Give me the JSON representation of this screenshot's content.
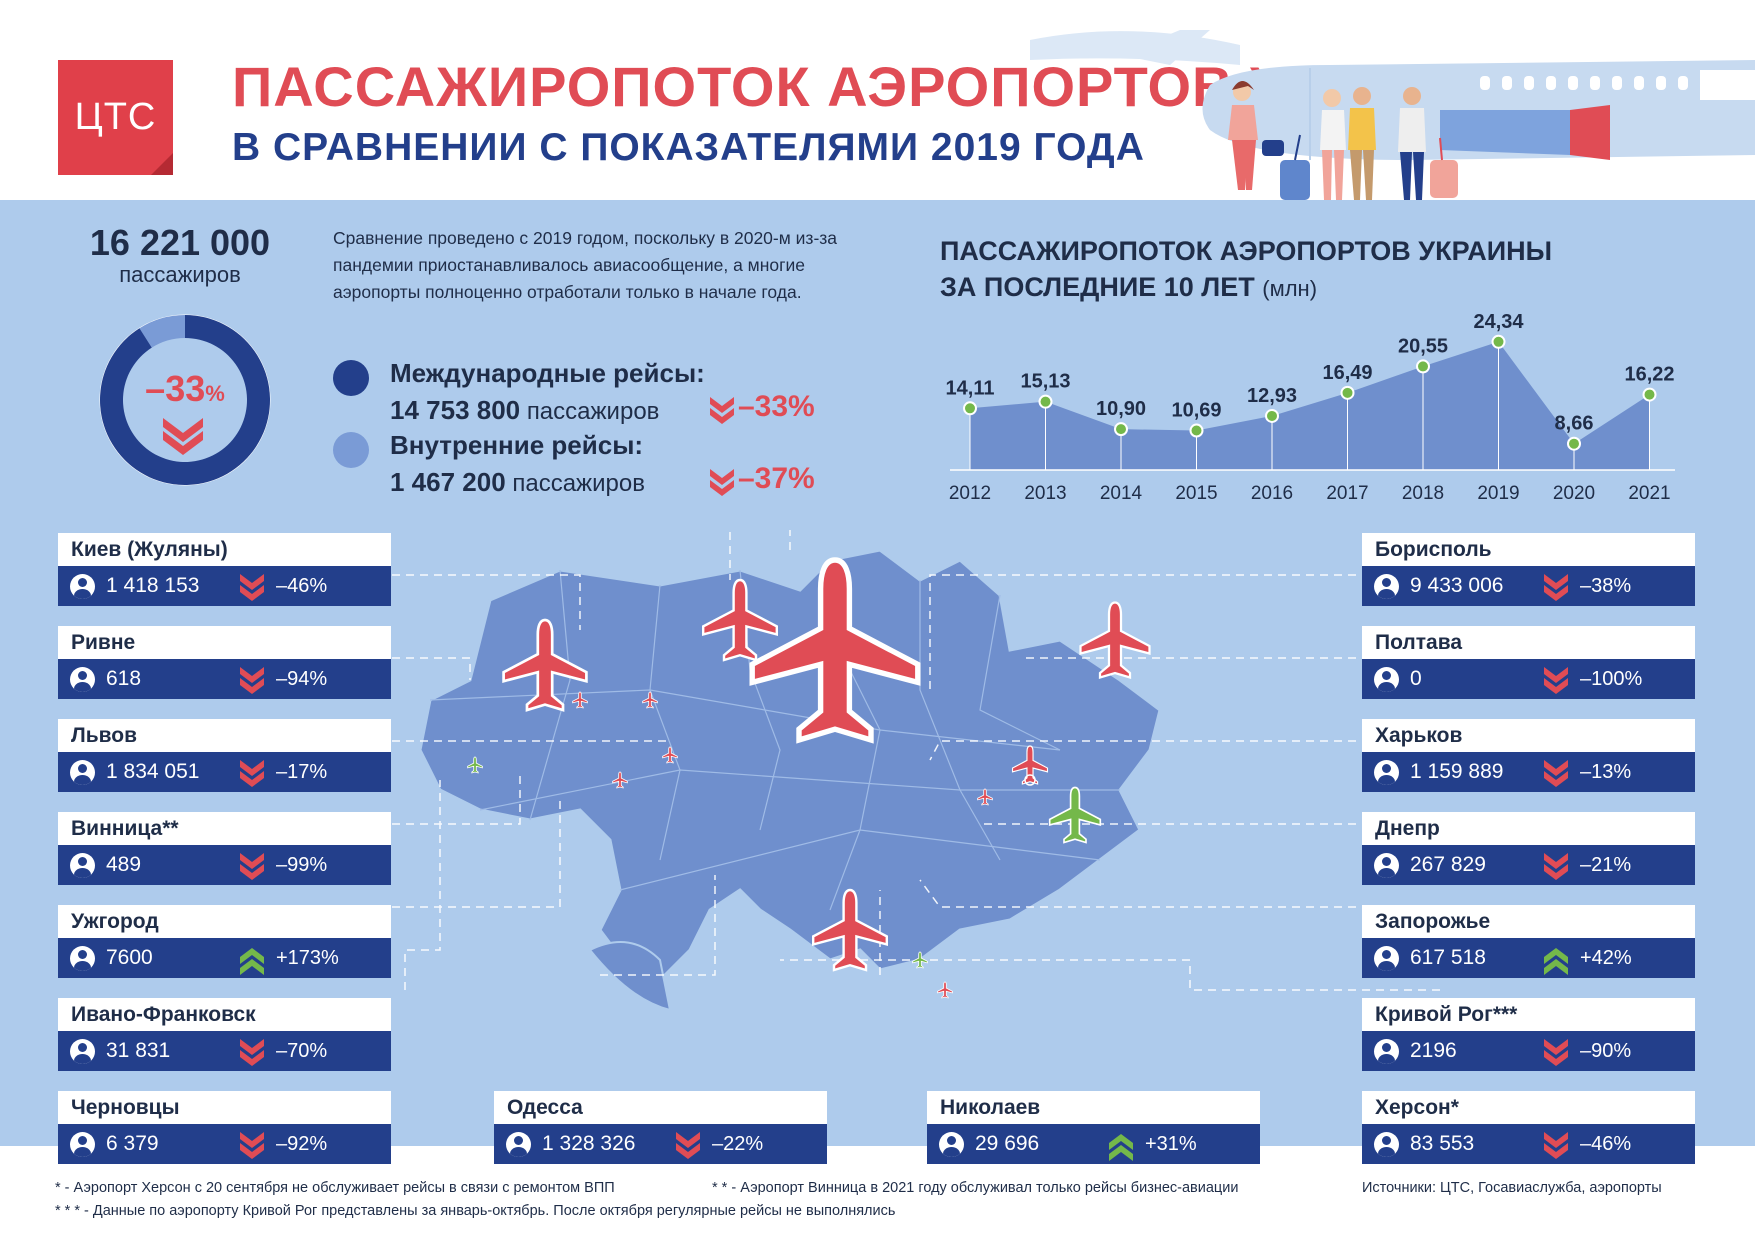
{
  "header": {
    "logo": "ЦТС",
    "title": "ПАССАЖИРОПОТОК АЭРОПОРТОВ УКРАИНЫ 2021",
    "subtitle": "В СРАВНЕНИИ С ПОКАЗАТЕЛЯМИ 2019 ГОДА"
  },
  "total": {
    "value": "16 221 000",
    "unit": "пассажиров",
    "change": "–33",
    "change_suffix": "%",
    "international_share": 0.91
  },
  "note": "Сравнение проведено с 2019 годом, поскольку в 2020-м из-за пандемии приостанавливалось авиасообщение, а многие аэропорты полноценно отработали только в начале года.",
  "legend": {
    "international": {
      "title": "Международные рейсы:",
      "value": "14 753 800",
      "unit": "пассажиров",
      "change": "–33%",
      "color": "#233f8b"
    },
    "domestic": {
      "title": "Внутренние рейсы:",
      "value": "1 467 200",
      "unit": "пассажиров",
      "change": "–37%",
      "color": "#7a9bd6"
    }
  },
  "chart_title": {
    "line1": "ПАССАЖИРОПОТОК АЭРОПОРТОВ УКРАИНЫ",
    "line2": "ЗА ПОСЛЕДНИЕ 10 ЛЕТ",
    "unit": "(млн)"
  },
  "chart_data": {
    "type": "area",
    "title": "ПАССАЖИРОПОТОК АЭРОПОРТОВ УКРАИНЫ ЗА ПОСЛЕДНИЕ 10 ЛЕТ (млн)",
    "categories": [
      "2012",
      "2013",
      "2014",
      "2015",
      "2016",
      "2017",
      "2018",
      "2019",
      "2020",
      "2021"
    ],
    "values": [
      14.11,
      15.13,
      10.9,
      10.69,
      12.93,
      16.49,
      20.55,
      24.34,
      8.66,
      16.22
    ],
    "labels": [
      "14,11",
      "15,13",
      "10,90",
      "10,69",
      "12,93",
      "16,49",
      "20,55",
      "24,34",
      "8,66",
      "16,22"
    ]
  },
  "cities_left": [
    {
      "name": "Киев (Жуляны)",
      "count": "1 418 153",
      "change": "–46%",
      "trend": "down"
    },
    {
      "name": "Ривне",
      "count": "618",
      "change": "–94%",
      "trend": "down"
    },
    {
      "name": "Львов",
      "count": "1 834 051",
      "change": "–17%",
      "trend": "down"
    },
    {
      "name": "Винница**",
      "count": "489",
      "change": "–99%",
      "trend": "down"
    },
    {
      "name": "Ужгород",
      "count": "7600",
      "change": "+173%",
      "trend": "up"
    },
    {
      "name": "Ивано-Франковск",
      "count": "31 831",
      "change": "–70%",
      "trend": "down"
    },
    {
      "name": "Черновцы",
      "count": "6 379",
      "change": "–92%",
      "trend": "down"
    }
  ],
  "cities_right": [
    {
      "name": "Борисполь",
      "count": "9 433 006",
      "change": "–38%",
      "trend": "down"
    },
    {
      "name": "Полтава",
      "count": "0",
      "change": "–100%",
      "trend": "down"
    },
    {
      "name": "Харьков",
      "count": "1 159 889",
      "change": "–13%",
      "trend": "down"
    },
    {
      "name": "Днепр",
      "count": "267 829",
      "change": "–21%",
      "trend": "down"
    },
    {
      "name": "Запорожье",
      "count": "617 518",
      "change": "+42%",
      "trend": "up"
    },
    {
      "name": "Кривой Рог***",
      "count": "2196",
      "change": "–90%",
      "trend": "down"
    },
    {
      "name": "Херсон*",
      "count": "83 553",
      "change": "–46%",
      "trend": "down"
    }
  ],
  "cities_bottom": [
    {
      "name": "Одесса",
      "count": "1 328 326",
      "change": "–22%",
      "trend": "down"
    },
    {
      "name": "Николаев",
      "count": "29 696",
      "change": "+31%",
      "trend": "up"
    }
  ],
  "footnotes": {
    "kherson": "* - Аэропорт Херсон с 20 сентября не обслуживает рейсы в связи с ремонтом ВПП",
    "vinnytsia": "* * - Аэропорт Винница в 2021 году обслуживал только рейсы бизнес-авиации",
    "kryvyi_rih": "* * * - Данные по аэропорту Кривой Рог представлены за январь-октябрь. После октября регулярные рейсы не выполнялись",
    "sources": "Источники: ЦТС, Госавиаслужба, аэропорты"
  },
  "colors": {
    "red": "#e04c55",
    "navy": "#233f8b",
    "green": "#74b84a",
    "light": "#aecbec",
    "map": "#6f8fcd"
  }
}
